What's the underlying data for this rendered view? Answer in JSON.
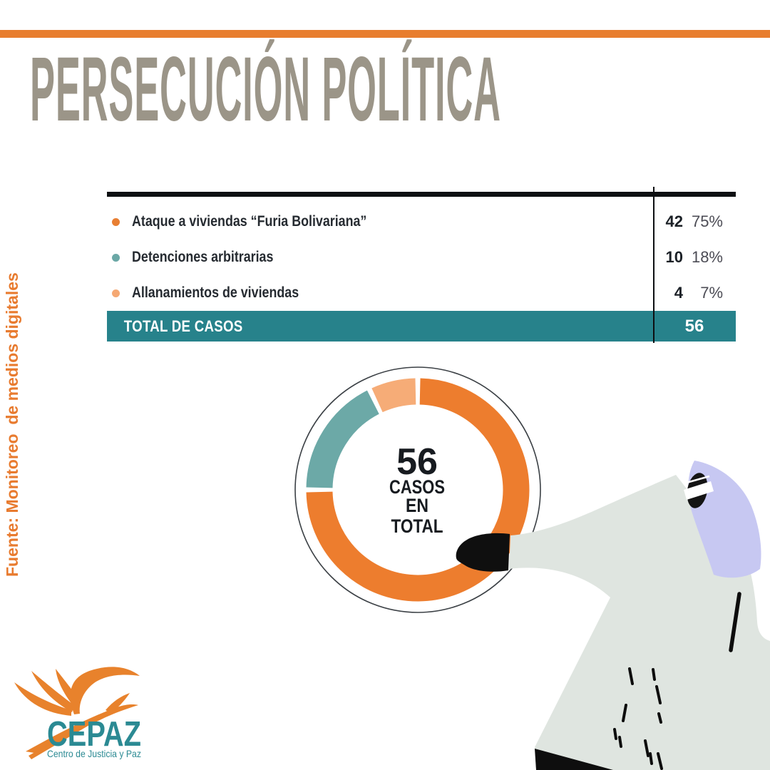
{
  "title": "PERSECUCIÓN POLÍTICA",
  "source_note": "Fuente: Monitoreo  de medios digitales",
  "accent": {
    "top_bar_color": "#E87D2E",
    "title_color": "#9B9588",
    "source_color": "#E87B2F"
  },
  "table": {
    "rows": [
      {
        "label": "Ataque a viviendas “Furia Bolivariana”",
        "value": "42",
        "pct": "75%",
        "bullet_color": "#E87F33"
      },
      {
        "label": "Detenciones arbitrarias",
        "value": "10",
        "pct": "18%",
        "bullet_color": "#6BA8A6"
      },
      {
        "label": "Allanamientos de viviendas",
        "value": "4",
        "pct": "7%",
        "bullet_color": "#F5A873"
      }
    ],
    "total_label": "TOTAL DE CASOS",
    "total_value": "56",
    "total_row_color": "#27828B"
  },
  "donut_center": {
    "value": "56",
    "line1": "CASOS",
    "line2": "EN",
    "line3": "TOTAL"
  },
  "chart_data": {
    "type": "pie",
    "subtype": "donut",
    "title": "PERSECUCIÓN POLÍTICA",
    "categories": [
      "Ataque a viviendas “Furia Bolivariana”",
      "Detenciones arbitrarias",
      "Allanamientos de viviendas"
    ],
    "values": [
      42,
      10,
      4
    ],
    "percent_labels": [
      "75%",
      "18%",
      "7%"
    ],
    "total": 56,
    "colors": [
      "#ED7D2E",
      "#6CA9A7",
      "#F6AC77"
    ],
    "center_label": "56 CASOS EN TOTAL",
    "legend_position": "table-above",
    "source": "Fuente: Monitoreo de medios digitales"
  },
  "logo": {
    "name": "CEPAZ",
    "tagline": "Centro de Justicia y Paz",
    "text_color": "#2B8A93",
    "bird_color": "#E8822C"
  }
}
